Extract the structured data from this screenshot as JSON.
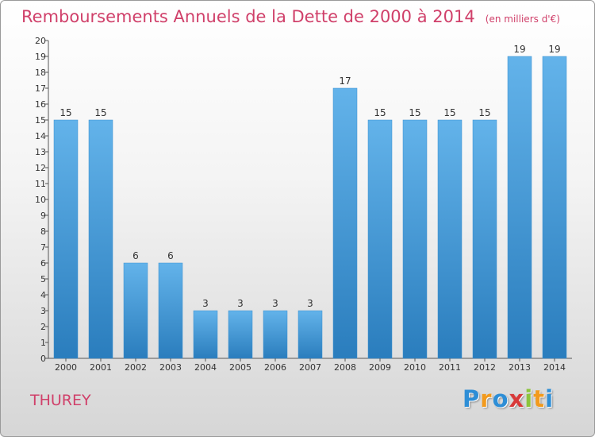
{
  "chart_data": {
    "type": "bar",
    "title": "Remboursements Annuels de la Dette de 2000 à 2014",
    "unit": "(en milliers d'€)",
    "categories": [
      "2000",
      "2001",
      "2002",
      "2003",
      "2004",
      "2005",
      "2006",
      "2007",
      "2008",
      "2009",
      "2010",
      "2011",
      "2012",
      "2013",
      "2014"
    ],
    "values": [
      15,
      15,
      6,
      6,
      3,
      3,
      3,
      3,
      17,
      15,
      15,
      15,
      15,
      19,
      19
    ],
    "ylim": [
      0,
      20
    ],
    "yticks": [
      0,
      1,
      2,
      3,
      4,
      5,
      6,
      7,
      8,
      9,
      10,
      11,
      12,
      13,
      14,
      15,
      16,
      17,
      18,
      19,
      20
    ],
    "grid": false,
    "bar_color_top": "#63b3ea",
    "bar_color_bottom": "#2a7dbd"
  },
  "commune": "THUREY",
  "logo": {
    "letters": [
      "P",
      "r",
      "o",
      "x",
      "i",
      "t",
      "i"
    ],
    "colors": [
      "#2e8ed6",
      "#f29a1d",
      "#2e8ed6",
      "#d83a3a",
      "#8cc43c",
      "#f29a1d",
      "#2e8ed6"
    ]
  }
}
